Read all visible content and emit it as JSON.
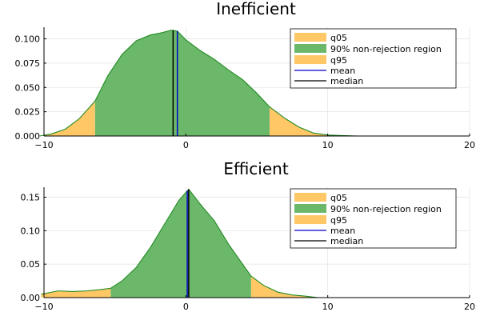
{
  "chart_data": [
    {
      "type": "area",
      "title": "Inefficient",
      "xlim": [
        -10,
        20
      ],
      "ylim": [
        0,
        0.112
      ],
      "x_ticks": [
        -10,
        0,
        10,
        20
      ],
      "x_tick_labels": [
        "−10",
        "0",
        "10",
        "20"
      ],
      "y_ticks": [
        0.0,
        0.025,
        0.05,
        0.075,
        0.1
      ],
      "y_tick_labels": [
        "0.000",
        "0.025",
        "0.050",
        "0.075",
        "0.100"
      ],
      "grid": true,
      "legend_position": "top-right",
      "legend": [
        "q05",
        "90% non-rejection region",
        "q95",
        "mean",
        "median"
      ],
      "density": {
        "x": [
          -10.3,
          -9.5,
          -8.5,
          -7.5,
          -6.4,
          -5.5,
          -4.5,
          -3.5,
          -2.5,
          -1.8,
          -1.0,
          -0.6,
          0.0,
          1.0,
          2.0,
          3.0,
          4.0,
          5.0,
          5.9,
          7.0,
          8.0,
          9.0,
          10.0,
          11.0,
          12.1
        ],
        "y": [
          0.0,
          0.002,
          0.007,
          0.018,
          0.036,
          0.062,
          0.084,
          0.098,
          0.104,
          0.106,
          0.109,
          0.108,
          0.099,
          0.088,
          0.079,
          0.068,
          0.058,
          0.044,
          0.03,
          0.018,
          0.009,
          0.003,
          0.001,
          0.0005,
          0.0
        ]
      },
      "q05": -6.4,
      "q95": 5.9,
      "mean": -0.6,
      "median": -0.9
    },
    {
      "type": "area",
      "title": "Efficient",
      "xlim": [
        -10,
        20
      ],
      "ylim": [
        0,
        0.165
      ],
      "x_ticks": [
        -10,
        0,
        10,
        20
      ],
      "x_tick_labels": [
        "−10",
        "0",
        "10",
        "20"
      ],
      "y_ticks": [
        0.0,
        0.05,
        0.1,
        0.15
      ],
      "y_tick_labels": [
        "0.00",
        "0.05",
        "0.10",
        "0.15"
      ],
      "grid": true,
      "legend_position": "top-right",
      "legend": [
        "q05",
        "90% non-rejection region",
        "q95",
        "mean",
        "median"
      ],
      "density": {
        "x": [
          -10.2,
          -9.0,
          -8.0,
          -7.0,
          -6.0,
          -5.3,
          -4.5,
          -3.5,
          -2.5,
          -1.5,
          -0.5,
          0.2,
          1.0,
          2.0,
          3.0,
          4.0,
          4.6,
          5.5,
          6.5,
          7.5,
          8.5,
          9.3
        ],
        "y": [
          0.005,
          0.01,
          0.009,
          0.01,
          0.012,
          0.014,
          0.025,
          0.045,
          0.075,
          0.11,
          0.145,
          0.162,
          0.14,
          0.115,
          0.08,
          0.05,
          0.032,
          0.018,
          0.008,
          0.004,
          0.002,
          0.0
        ]
      },
      "q05": -5.3,
      "q95": 4.6,
      "mean": 0.1,
      "median": 0.2
    }
  ],
  "colors": {
    "tail_fill": "#ffc766",
    "region_fill": "#6bb86b",
    "curve": "#228b22",
    "mean": "#0000cc",
    "median": "#000000"
  }
}
